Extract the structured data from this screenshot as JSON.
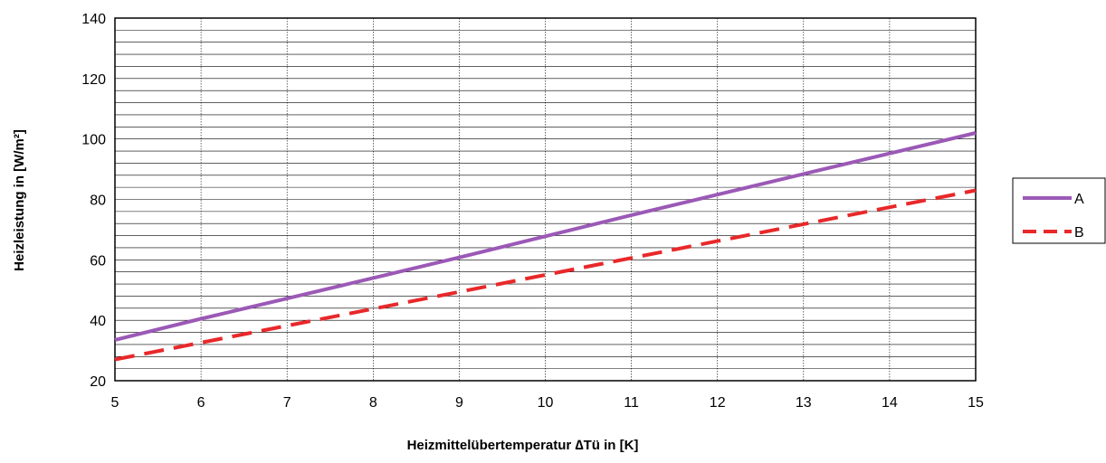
{
  "chart_data": {
    "type": "line",
    "title": "",
    "xlabel": "Heizmittelübertemperatur ∆Tü in [K]",
    "ylabel": "Heizleistung in [W/m²]",
    "xlim": [
      5,
      15
    ],
    "ylim": [
      20,
      140
    ],
    "xticks": [
      5,
      6,
      7,
      8,
      9,
      10,
      11,
      12,
      13,
      14,
      15
    ],
    "yticks": [
      20,
      40,
      60,
      80,
      100,
      120,
      140
    ],
    "x_tick_labels": [
      "5",
      "6",
      "7",
      "8",
      "9",
      "10",
      "11",
      "12",
      "13",
      "14",
      "15"
    ],
    "y_tick_labels": [
      "20",
      "40",
      "60",
      "80",
      "100",
      "120",
      "140"
    ],
    "y_minor_step": 4,
    "grid": true,
    "legend_position": "right",
    "series": [
      {
        "name": "A",
        "color": "#9b59b6",
        "style": "solid",
        "x": [
          5,
          6,
          7,
          8,
          9,
          10,
          11,
          12,
          13,
          14,
          15
        ],
        "y": [
          33.5,
          40.5,
          47.2,
          54.0,
          60.8,
          67.8,
          74.8,
          81.6,
          88.4,
          95.2,
          102.0
        ]
      },
      {
        "name": "B",
        "color": "#e8282a",
        "style": "dashed",
        "x": [
          5,
          6,
          7,
          8,
          9,
          10,
          11,
          12,
          13,
          14,
          15
        ],
        "y": [
          27.0,
          32.6,
          38.2,
          43.8,
          49.4,
          55.0,
          60.6,
          66.2,
          71.8,
          77.4,
          83.0
        ]
      }
    ]
  }
}
